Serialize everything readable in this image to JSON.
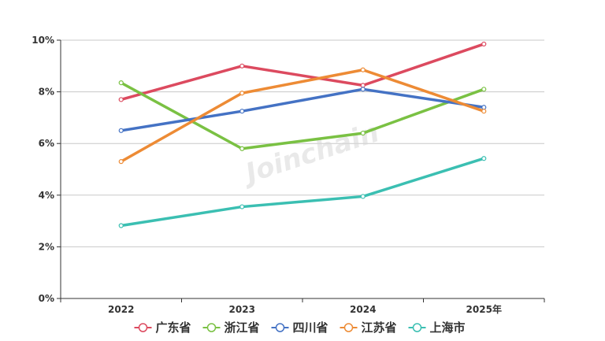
{
  "chart_data": {
    "type": "line",
    "title": "",
    "xlabel": "",
    "ylabel": "",
    "categories": [
      "2022",
      "2023",
      "2024",
      "2025年"
    ],
    "ylim": [
      0,
      10
    ],
    "y_ticks": [
      "0%",
      "2%",
      "4%",
      "6%",
      "8%",
      "10%"
    ],
    "grid": true,
    "legend_position": "bottom",
    "watermark": "Joinchain",
    "series": [
      {
        "name": "广东省",
        "color": "#dc4a5f",
        "values": [
          7.7,
          9.0,
          8.25,
          9.85
        ]
      },
      {
        "name": "浙江省",
        "color": "#7ac143",
        "values": [
          8.35,
          5.8,
          6.4,
          8.1
        ]
      },
      {
        "name": "四川省",
        "color": "#4472c4",
        "values": [
          6.5,
          7.25,
          8.1,
          7.4
        ]
      },
      {
        "name": "江苏省",
        "color": "#ed8b35",
        "values": [
          5.3,
          7.95,
          8.85,
          7.25
        ]
      },
      {
        "name": "上海市",
        "color": "#3bbfb2",
        "values": [
          2.82,
          3.55,
          3.95,
          5.42
        ]
      }
    ]
  }
}
